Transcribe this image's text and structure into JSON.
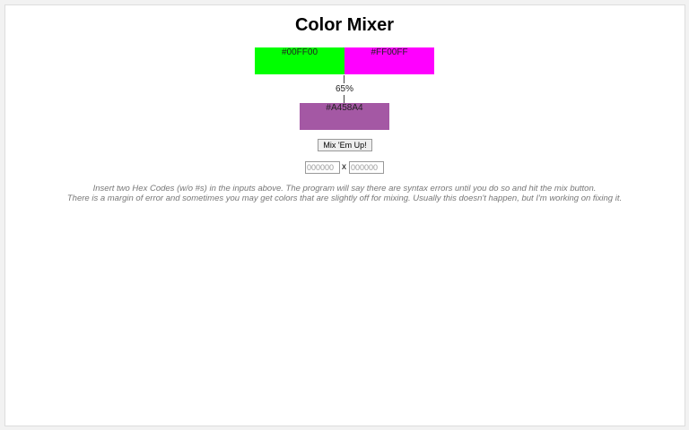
{
  "title": "Color Mixer",
  "color1": {
    "hex": "#00FF00",
    "color": "#00ff00"
  },
  "color2": {
    "hex": "#FF00FF",
    "color": "#ff00ff"
  },
  "ratio": "65%",
  "result": {
    "hex": "#A458A4",
    "color": "#a458a4"
  },
  "mix_button": "Mix 'Em Up!",
  "input1_placeholder": "000000",
  "input2_placeholder": "000000",
  "separator": "x",
  "note_line1": "Insert two Hex Codes (w/o #s) in the inputs above. The program will say there are syntax errors until you do so and hit the mix button.",
  "note_line2": "There is a margin of error and sometimes you may get colors that are slightly off for mixing. Usually this doesn't happen, but I'm working on fixing it."
}
